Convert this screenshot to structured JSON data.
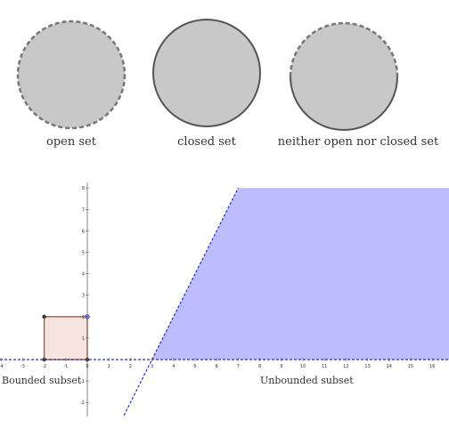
{
  "sets": [
    {
      "label": "open set"
    },
    {
      "label": "closed set"
    },
    {
      "label": "neither open nor closed set"
    }
  ],
  "plot": {
    "x_ticks": [
      "-4",
      "-3",
      "-2",
      "-1",
      "0",
      "1",
      "2",
      "3",
      "4",
      "5",
      "6",
      "7",
      "8",
      "9",
      "10",
      "11",
      "12",
      "13",
      "14",
      "15",
      "16"
    ],
    "y_ticks": [
      "8",
      "7",
      "6",
      "5",
      "4",
      "3",
      "2",
      "1",
      "-1",
      "-2"
    ],
    "bounded_label": "Bounded subset",
    "unbounded_label": "Unbounded subset",
    "square_x": [
      -2,
      0
    ],
    "square_y": [
      0,
      2
    ],
    "line_points": [
      [
        3,
        0
      ],
      [
        7,
        8
      ]
    ],
    "colors": {
      "fill_gray": "#c8c8c8",
      "region_blue": "#b8b8ff",
      "square_fill": "#f5e4e0",
      "square_edge": "#b05a3a",
      "axis_dashed": "#2233cc"
    }
  }
}
